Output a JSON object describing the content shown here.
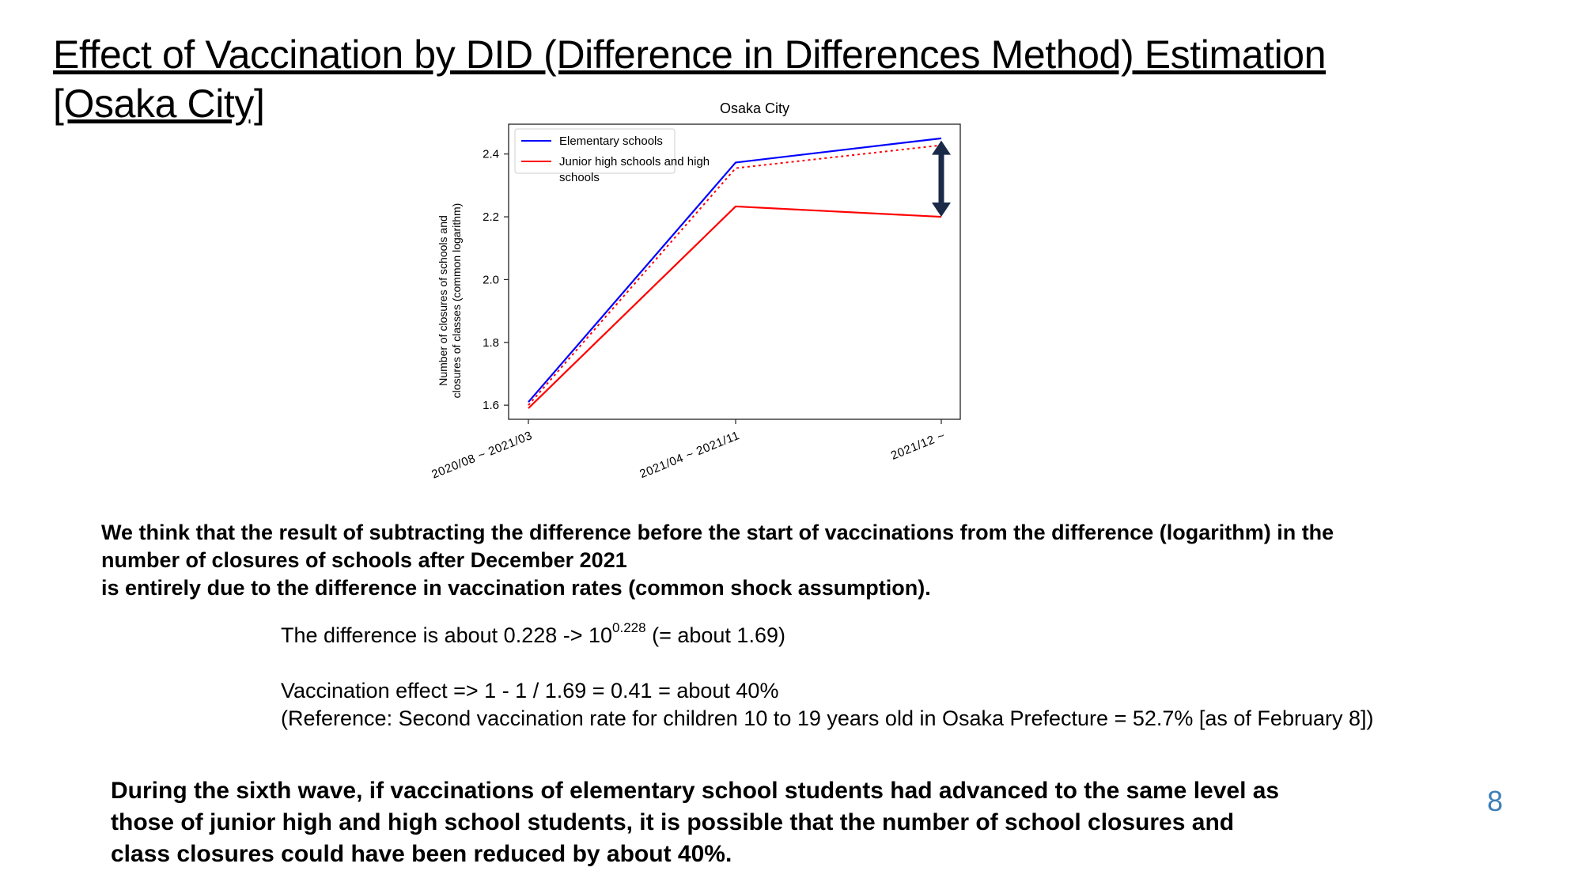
{
  "slide": {
    "title": "Effect of Vaccination by DID (Difference in Differences Method) Estimation [Osaka City]",
    "paragraph": "We think that the result of subtracting the difference before the start of vaccinations from the difference (logarithm) in the\nnumber of closures of schools after December 2021\n is entirely due to the difference in vaccination rates (common shock assumption).",
    "difference_prefix": "The difference is about 0.228 -> 10",
    "difference_exponent": "0.228",
    "difference_suffix": " (= about 1.69)",
    "vaccination_effect": "Vaccination effect => 1 - 1 / 1.69 = 0.41 = about 40%",
    "reference": "(Reference: Second vaccination rate for children 10 to 19 years old in Osaka Prefecture = 52.7% [as of February 8])",
    "conclusion": "During the sixth wave, if vaccinations of elementary school students had advanced to the same level as\nthose of junior high and high school students, it is possible that the number of school closures and\nclass closures could have been reduced by about 40%.",
    "page_number": "8"
  },
  "chart_data": {
    "type": "line",
    "title": "Osaka City",
    "xlabel": "",
    "ylabel": "Number of closures of schools and closures of classes (common logarithm)",
    "ylabel_lines": [
      "Number of closures of schools and",
      "closures of classes (common logarithm)"
    ],
    "categories": [
      "2020/08 ~ 2021/03",
      "2021/04 ~ 2021/11",
      "2021/12 ~"
    ],
    "yticks": [
      1.6,
      1.8,
      2.0,
      2.2,
      2.4
    ],
    "ytick_labels": [
      "1.6",
      "1.8",
      "2.0",
      "2.2",
      "2.4"
    ],
    "ylim": [
      1.555,
      2.495
    ],
    "series": [
      {
        "name": "Elementary schools",
        "legend_lines": [
          "Elementary schools"
        ],
        "color": "#0000ff",
        "style": "solid",
        "values": [
          1.61,
          2.373,
          2.45
        ]
      },
      {
        "name": "Junior high schools and high schools",
        "legend_lines": [
          "Junior high schools and high",
          "schools"
        ],
        "color": "#ff0000",
        "style": "solid",
        "values": [
          1.59,
          2.233,
          2.2
        ]
      },
      {
        "name": "",
        "legend_lines": [],
        "color": "#ff0000",
        "style": "dotted",
        "values": [
          1.6,
          2.355,
          2.428
        ]
      }
    ],
    "annotation": {
      "type": "double-arrow",
      "category_index": 2,
      "from": 2.2,
      "to": 2.428,
      "color": "#1a2a48"
    },
    "grid": false,
    "legend_position": "upper-left"
  }
}
